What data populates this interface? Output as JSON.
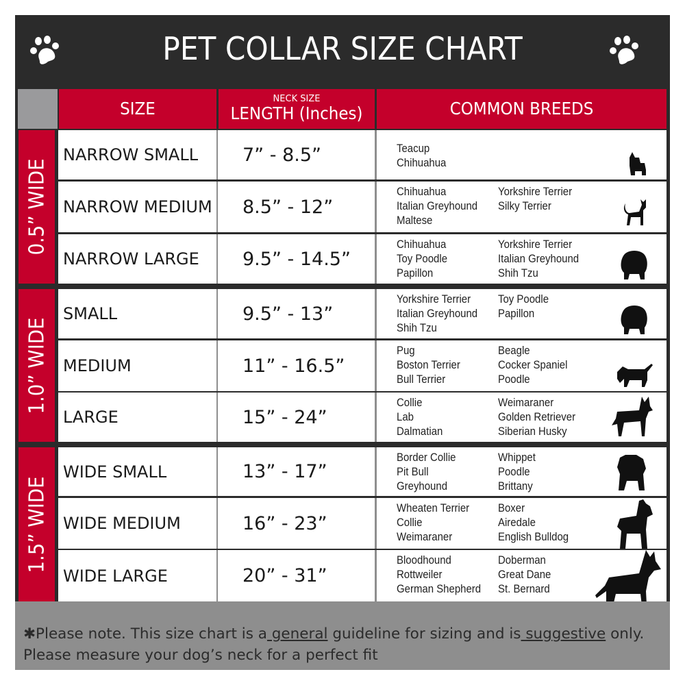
{
  "title": "PET COLLAR SIZE CHART",
  "icons": {
    "left": "paw-print-icon",
    "right": "paw-print-icon"
  },
  "colors": {
    "header_bg": "#2b2b2b",
    "accent_red": "#c4002b",
    "gray": "#8e8e8e"
  },
  "columns": {
    "size": "SIZE",
    "length_small": "NECK SIZE",
    "length": "LENGTH (Inches)",
    "breeds": "COMMON BREEDS"
  },
  "groups": [
    {
      "label": "0.5” WIDE",
      "rows": [
        {
          "size": "NARROW SMALL",
          "length": "7” - 8.5”",
          "col1": [
            "Teacup",
            "Chihuahua"
          ],
          "col2": [],
          "icon": "yorkie-silhouette-icon"
        },
        {
          "size": "NARROW MEDIUM",
          "length": "8.5” - 12”",
          "col1": [
            "Chihuahua",
            "Italian Greyhound",
            "Maltese"
          ],
          "col2": [
            "Yorkshire Terrier",
            "Silky Terrier"
          ],
          "icon": "chihuahua-silhouette-icon"
        },
        {
          "size": "NARROW LARGE",
          "length": "9.5” - 14.5”",
          "col1": [
            "Chihuahua",
            "Toy Poodle",
            "Papillon"
          ],
          "col2": [
            "Yorkshire Terrier",
            "Italian Greyhound",
            "Shih Tzu"
          ],
          "icon": "pomeranian-silhouette-icon"
        }
      ]
    },
    {
      "label": "1.0” WIDE",
      "rows": [
        {
          "size": "SMALL",
          "length": "9.5” - 13”",
          "col1": [
            "Yorkshire Terrier",
            "Italian Greyhound",
            "Shih Tzu"
          ],
          "col2": [
            "Toy Poodle",
            "Papillon"
          ],
          "icon": "pomeranian-silhouette-icon"
        },
        {
          "size": "MEDIUM",
          "length": "11” - 16.5”",
          "col1": [
            "Pug",
            "Boston Terrier",
            "Bull Terrier"
          ],
          "col2": [
            "Beagle",
            "Cocker Spaniel",
            "Poodle"
          ],
          "icon": "dachshund-silhouette-icon"
        },
        {
          "size": "LARGE",
          "length": "15” - 24”",
          "col1": [
            "Collie",
            "Lab",
            "Dalmatian"
          ],
          "col2": [
            "Weimaraner",
            "Golden Retriever",
            "Siberian Husky"
          ],
          "icon": "shepherd-silhouette-icon"
        }
      ]
    },
    {
      "label": "1.5” WIDE",
      "rows": [
        {
          "size": "WIDE SMALL",
          "length": "13” - 17”",
          "col1": [
            "Border Collie",
            "Pit Bull",
            "Greyhound"
          ],
          "col2": [
            "Whippet",
            "Poodle",
            "Brittany"
          ],
          "icon": "bulldog-silhouette-icon"
        },
        {
          "size": "WIDE MEDIUM",
          "length": "16” - 23”",
          "col1": [
            "Wheaten Terrier",
            "Collie",
            "Weimaraner"
          ],
          "col2": [
            "Boxer",
            "Airedale",
            "English Bulldog"
          ],
          "icon": "pitbull-silhouette-icon"
        },
        {
          "size": "WIDE LARGE",
          "length": "20” - 31”",
          "col1": [
            "Bloodhound",
            "Rottweiler",
            "German Shepherd"
          ],
          "col2": [
            "Doberman",
            "Great Dane",
            "St. Bernard"
          ],
          "icon": "doberman-silhouette-icon"
        }
      ]
    }
  ],
  "footer": {
    "p1": "✱Please note. This size chart is a",
    "u1": " general",
    "p2": " guideline for sizing and is",
    "u2": " suggestive",
    "p3": " only.",
    "line2": "Please measure your dog’s neck for a perfect fit"
  }
}
